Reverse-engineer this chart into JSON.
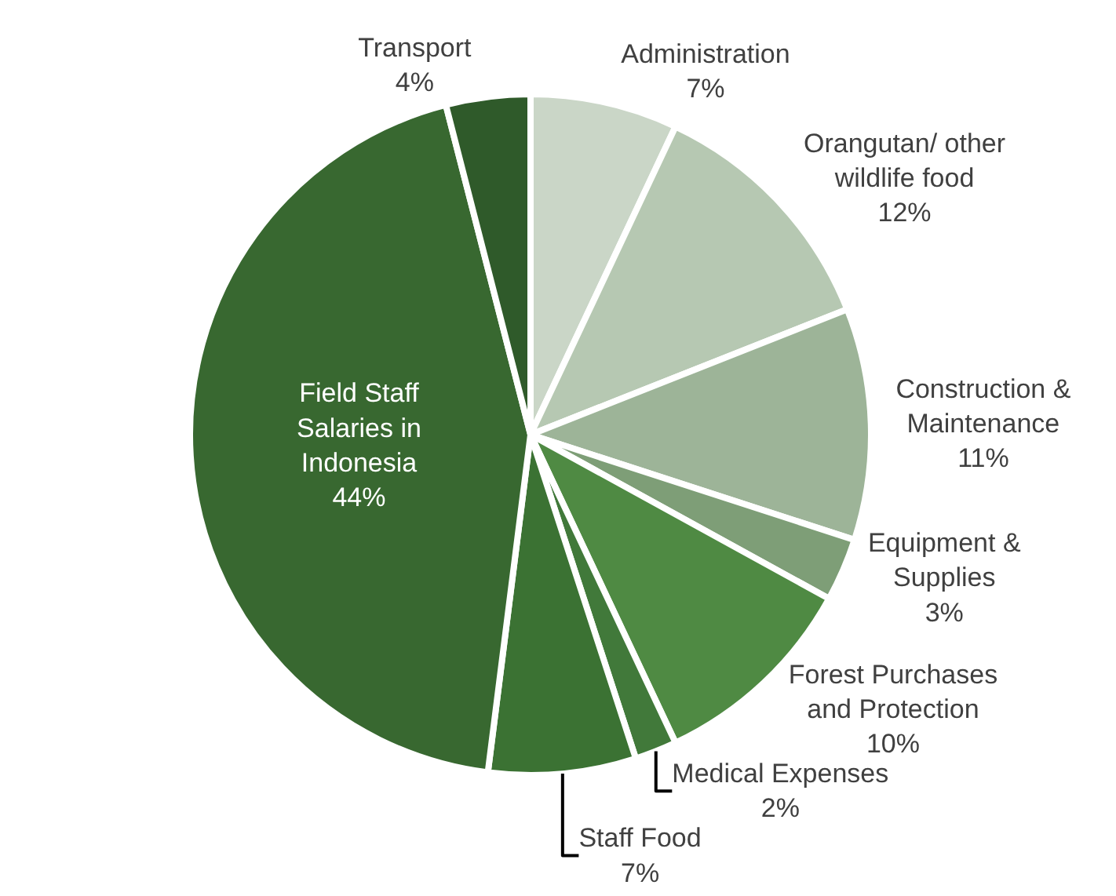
{
  "chart_data": {
    "type": "pie",
    "categories": [
      "Administration",
      "Orangutan/ other wildlife food",
      "Construction & Maintenance",
      "Equipment & Supplies",
      "Forest Purchases and Protection",
      "Medical Expenses",
      "Staff Food",
      "Field Staff Salaries in Indonesia",
      "Transport"
    ],
    "values": [
      7,
      12,
      11,
      3,
      10,
      2,
      7,
      44,
      4
    ],
    "colors": [
      "#cad6c7",
      "#b6c8b2",
      "#9db498",
      "#7e9e77",
      "#4f8a43",
      "#41793a",
      "#3b7233",
      "#386830",
      "#2f5a2a"
    ],
    "value_labels": [
      "7%",
      "12%",
      "11%",
      "3%",
      "10%",
      "2%",
      "7%",
      "44%",
      "4%"
    ],
    "legend": false
  }
}
